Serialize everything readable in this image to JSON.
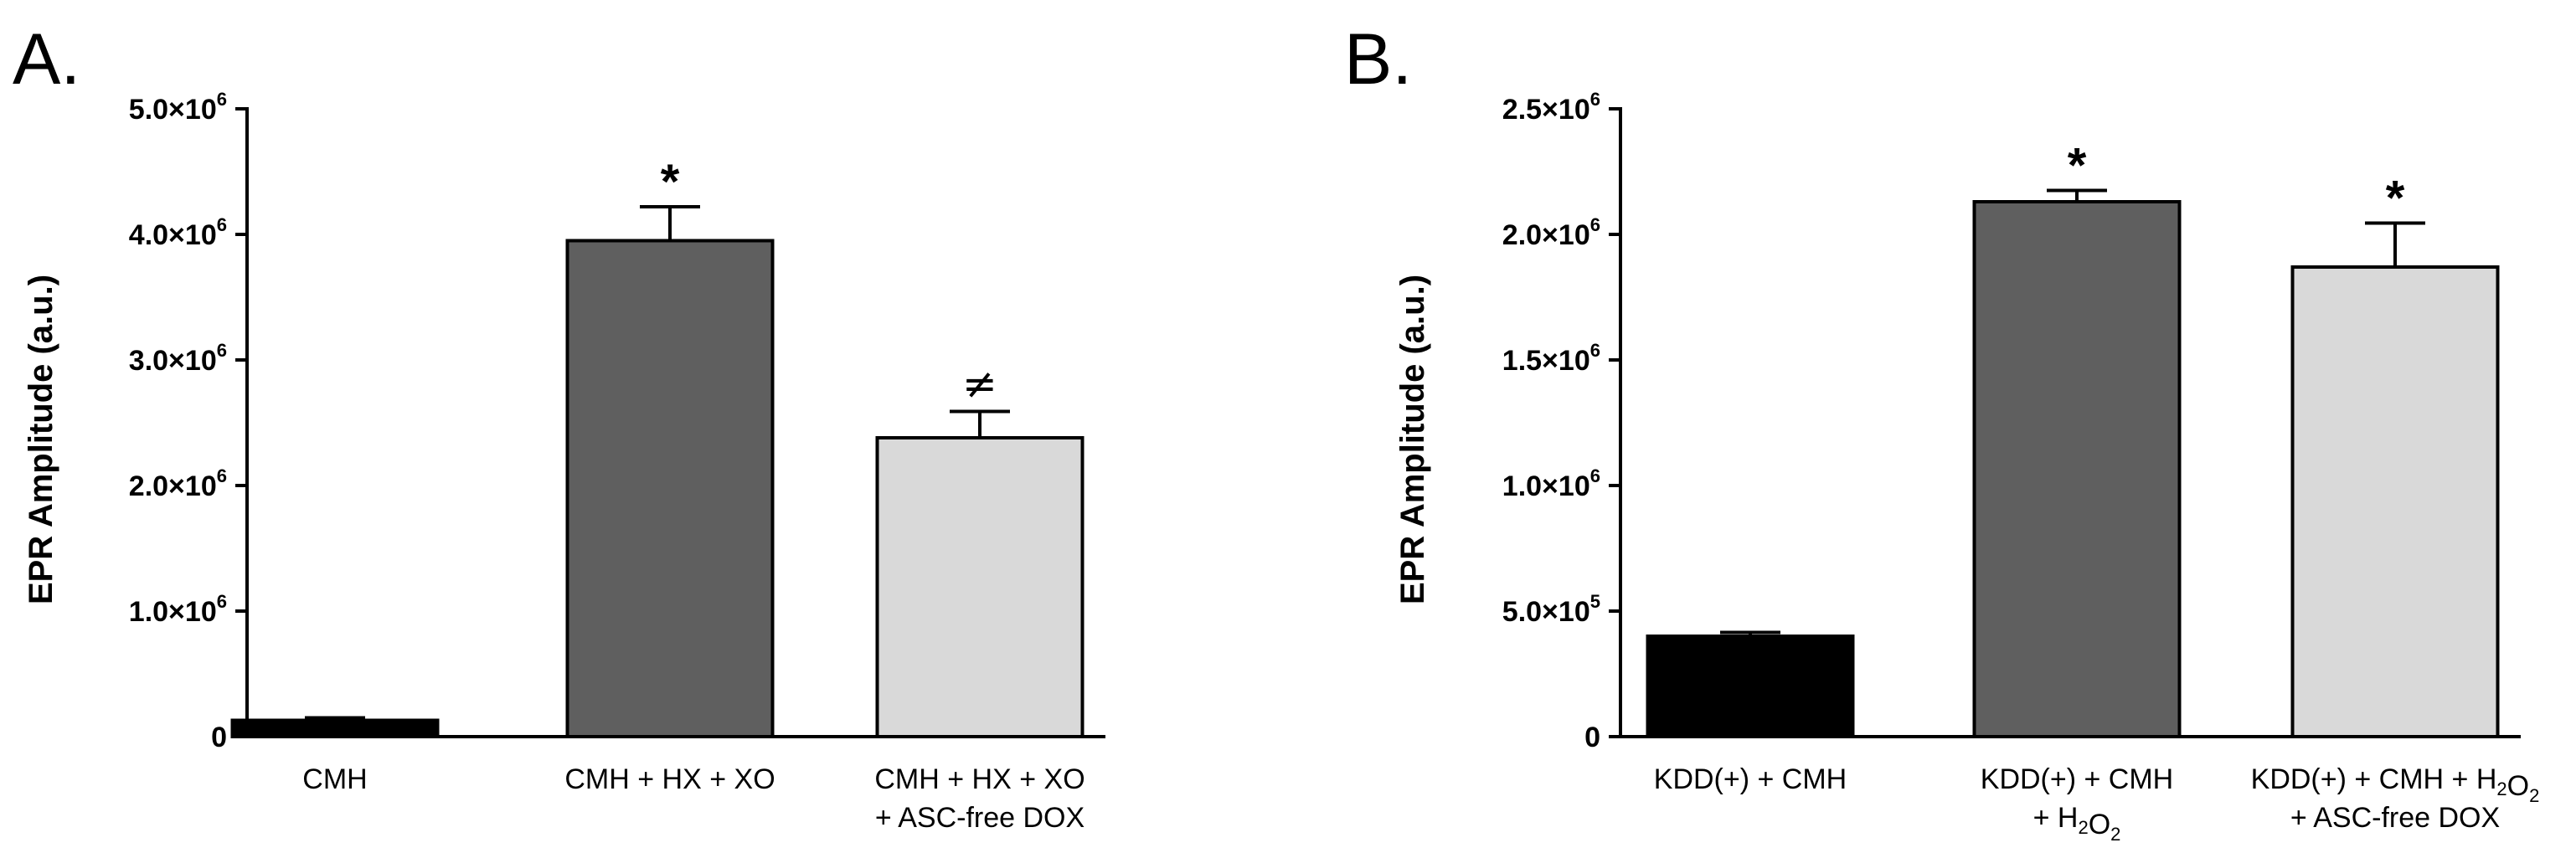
{
  "chart_data": [
    {
      "panel_label": "A.",
      "type": "bar",
      "ylabel": "EPR Amplitude (a.u.)",
      "ylim": [
        0,
        5000000
      ],
      "yticks": [
        {
          "value": 0,
          "mantissa": "0",
          "exponent": ""
        },
        {
          "value": 1000000,
          "mantissa": "1.0×10",
          "exponent": "6"
        },
        {
          "value": 2000000,
          "mantissa": "2.0×10",
          "exponent": "6"
        },
        {
          "value": 3000000,
          "mantissa": "3.0×10",
          "exponent": "6"
        },
        {
          "value": 4000000,
          "mantissa": "4.0×10",
          "exponent": "6"
        },
        {
          "value": 5000000,
          "mantissa": "5.0×10",
          "exponent": "6"
        }
      ],
      "categories": [
        {
          "line1": [
            {
              "t": "CMH"
            }
          ],
          "line2": []
        },
        {
          "line1": [
            {
              "t": "CMH + HX + XO"
            }
          ],
          "line2": []
        },
        {
          "line1": [
            {
              "t": "CMH + HX + XO"
            }
          ],
          "line2": [
            {
              "t": "+ ASC-free DOX"
            }
          ]
        }
      ],
      "values": [
        130000,
        3950000,
        2380000
      ],
      "errors": [
        20000,
        270000,
        210000
      ],
      "colors": [
        "#000000",
        "#5f5f5f",
        "#d9d9d9"
      ],
      "annotations": [
        "",
        "*",
        "≠"
      ]
    },
    {
      "panel_label": "B.",
      "type": "bar",
      "ylabel": "EPR Amplitude (a.u.)",
      "ylim": [
        0,
        2500000
      ],
      "yticks": [
        {
          "value": 0,
          "mantissa": "0",
          "exponent": ""
        },
        {
          "value": 500000,
          "mantissa": "5.0×10",
          "exponent": "5"
        },
        {
          "value": 1000000,
          "mantissa": "1.0×10",
          "exponent": "6"
        },
        {
          "value": 1500000,
          "mantissa": "1.5×10",
          "exponent": "6"
        },
        {
          "value": 2000000,
          "mantissa": "2.0×10",
          "exponent": "6"
        },
        {
          "value": 2500000,
          "mantissa": "2.5×10",
          "exponent": "6"
        }
      ],
      "categories": [
        {
          "line1": [
            {
              "t": "KDD(+) + CMH"
            }
          ],
          "line2": []
        },
        {
          "line1": [
            {
              "t": "KDD(+) + CMH"
            }
          ],
          "line2": [
            {
              "t": "+ H"
            },
            {
              "t": "2",
              "sub": true
            },
            {
              "t": "O"
            },
            {
              "t": "2",
              "sub": true
            }
          ]
        },
        {
          "line1": [
            {
              "t": "KDD(+) + CMH + H"
            },
            {
              "t": "2",
              "sub": true
            },
            {
              "t": "O"
            },
            {
              "t": "2",
              "sub": true
            }
          ],
          "line2": [
            {
              "t": "+ ASC-free DOX"
            }
          ]
        }
      ],
      "values": [
        400000,
        2130000,
        1870000
      ],
      "errors": [
        15000,
        45000,
        175000
      ],
      "colors": [
        "#000000",
        "#5f5f5f",
        "#d9d9d9"
      ],
      "annotations": [
        "",
        "*",
        "*"
      ]
    }
  ]
}
